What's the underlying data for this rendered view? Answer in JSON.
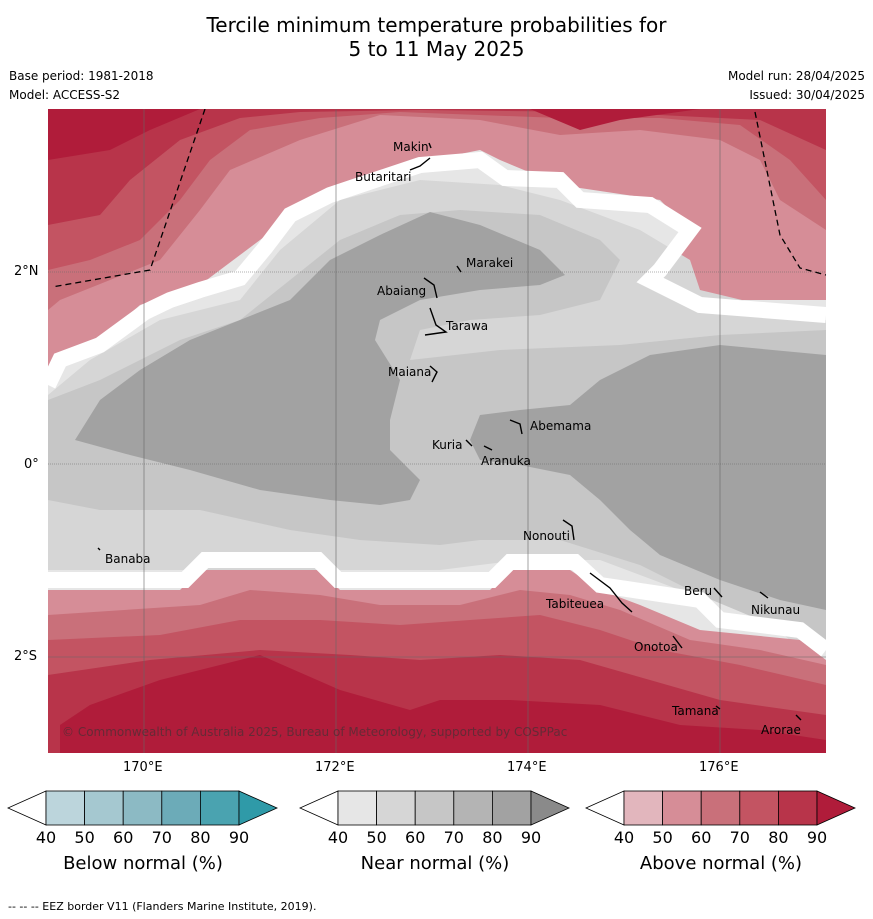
{
  "title_line1": "Tercile minimum temperature probabilities for",
  "title_line2": "5 to 11 May 2025",
  "meta": {
    "base_period": "Base period: 1981-2018",
    "model": "Model: ACCESS-S2",
    "model_run": "Model run: 28/04/2025",
    "issued": "Issued: 30/04/2025"
  },
  "lat_labels": [
    "2°N",
    "0°",
    "2°S"
  ],
  "lon_labels": [
    "170°E",
    "172°E",
    "174°E",
    "176°E"
  ],
  "islands": [
    "Makin",
    "Butaritari",
    "Marakei",
    "Abaiang",
    "Tarawa",
    "Maiana",
    "Abemama",
    "Kuria",
    "Aranuka",
    "Nonouti",
    "Banaba",
    "Tabiteuea",
    "Beru",
    "Nikunau",
    "Onotoa",
    "Tamana",
    "Arorae"
  ],
  "copyright": "© Commonwealth of Australia 2025, Bureau of Meteorology, supported by COSPPac",
  "colorbars": [
    {
      "title": "Below normal (%)",
      "ticks": [
        "40",
        "50",
        "60",
        "70",
        "80",
        "90"
      ],
      "colors": [
        "#ffffff",
        "#bcd5dc",
        "#a5c8d0",
        "#8cbac4",
        "#6cabb8",
        "#4aa3b0",
        "#2f9aa8"
      ]
    },
    {
      "title": "Near normal (%)",
      "ticks": [
        "40",
        "50",
        "60",
        "70",
        "80",
        "90"
      ],
      "colors": [
        "#ffffff",
        "#e6e6e6",
        "#d6d6d6",
        "#c6c6c6",
        "#b4b4b4",
        "#a2a2a2",
        "#8a8a8a"
      ]
    },
    {
      "title": "Above normal (%)",
      "ticks": [
        "40",
        "50",
        "60",
        "70",
        "80",
        "90"
      ],
      "colors": [
        "#ffffff",
        "#e2b6bd",
        "#d68d97",
        "#c9707a",
        "#c35462",
        "#b8344a",
        "#b01c3a"
      ]
    }
  ],
  "footer": "--  --  -- EEZ border V11 (Flanders Marine Institute, 2019)."
}
